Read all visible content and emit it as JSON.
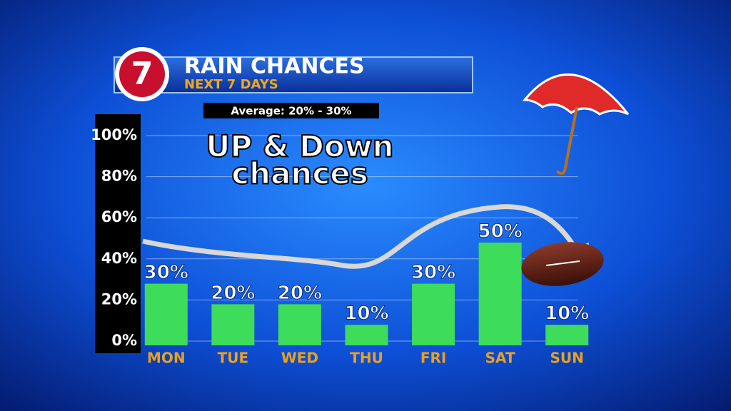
{
  "chart_data": {
    "type": "bar",
    "logo": "7",
    "title": "RAIN CHANCES",
    "subtitle": "NEXT 7 DAYS",
    "annotations": [
      "Average: 20% - 30%",
      "UP & Down",
      "chances"
    ],
    "categories": [
      "MON",
      "TUE",
      "WED",
      "THU",
      "FRI",
      "SAT",
      "SUN"
    ],
    "values": [
      30,
      20,
      20,
      10,
      30,
      50,
      10
    ],
    "value_labels": [
      "30%",
      "20%",
      "20%",
      "10%",
      "30%",
      "50%",
      "10%"
    ],
    "color": "#3ddc5a",
    "ylim": [
      0,
      100
    ],
    "yticks": [
      {
        "value": 0,
        "label": "0%"
      },
      {
        "value": 20,
        "label": "20%"
      },
      {
        "value": 40,
        "label": "40%"
      },
      {
        "value": 60,
        "label": "60%"
      },
      {
        "value": 80,
        "label": "80%"
      },
      {
        "value": 100,
        "label": "100%"
      }
    ],
    "grid": true
  }
}
